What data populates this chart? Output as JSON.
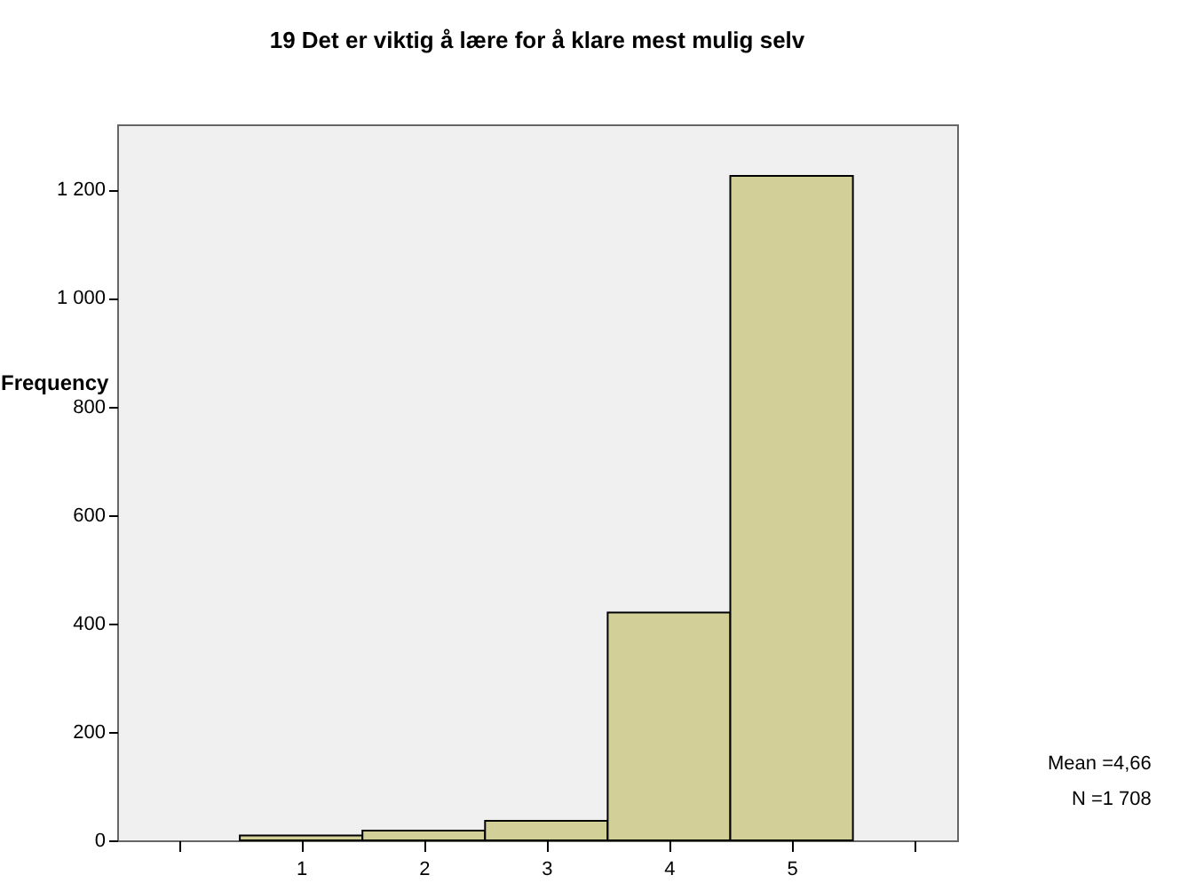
{
  "chart_data": {
    "type": "histogram",
    "title": "19 Det er viktig å lære for å klare mest mulig selv",
    "ylabel": "Frequency",
    "bins": [
      0.5,
      1.5,
      2.5,
      3.5,
      4.5,
      5.5
    ],
    "values": [
      9,
      18,
      36,
      420,
      1225
    ],
    "color": "#d3cf98",
    "xlim": [
      -0.5,
      6.35
    ],
    "xticks": [
      {
        "value": 0,
        "label": null
      },
      1,
      2,
      3,
      4,
      5,
      {
        "value": 6,
        "label": null
      }
    ],
    "ylim": [
      0,
      1320
    ],
    "yticks": [
      0,
      200,
      400,
      600,
      800,
      {
        "value": 1000,
        "label": "1 000"
      },
      {
        "value": 1200,
        "label": "1 200"
      }
    ],
    "grid": false,
    "annotations": [
      "Mean =4,66",
      "N =1 708"
    ]
  }
}
